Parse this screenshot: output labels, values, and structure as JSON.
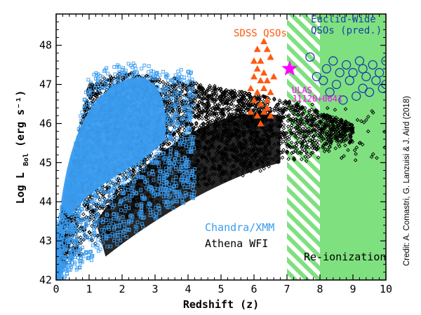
{
  "chart_data": {
    "type": "scatter",
    "xlabel": "Redshift (z)",
    "ylabel_main": "Log L",
    "ylabel_sub": "Bol",
    "ylabel_units": "(erg s⁻¹)",
    "xlim": [
      0,
      10
    ],
    "ylim": [
      42,
      48.8
    ],
    "xticks": [
      "0",
      "1",
      "2",
      "3",
      "4",
      "5",
      "6",
      "7",
      "8",
      "9",
      "10"
    ],
    "yticks": [
      "42",
      "43",
      "44",
      "45",
      "46",
      "47",
      "48"
    ],
    "regions": [
      {
        "label": "Re-ionization",
        "x": [
          7,
          10
        ],
        "style": "hatched 7–8, solid 8–10",
        "color": "#7fe07f"
      }
    ],
    "series": [
      {
        "name": "Athena WFI",
        "marker": "diamond",
        "color": "#000000",
        "description_region": "dense band from z≈0 to z≈9, rising upper envelope from 43 to ~47.4"
      },
      {
        "name": "Chandra/XMM",
        "marker": "square",
        "color": "#3a9cf0"
      },
      {
        "name": "SDSS QSOs",
        "marker": "triangle",
        "color": "#ff5a10",
        "points": [
          [
            6.1,
            47.9
          ],
          [
            6.3,
            48.1
          ],
          [
            6.4,
            47.9
          ],
          [
            6.0,
            47.6
          ],
          [
            6.2,
            47.6
          ],
          [
            6.5,
            47.7
          ],
          [
            6.1,
            47.4
          ],
          [
            6.3,
            47.3
          ],
          [
            6.0,
            47.2
          ],
          [
            6.2,
            47.1
          ],
          [
            6.4,
            47.1
          ],
          [
            6.6,
            47.2
          ],
          [
            5.9,
            46.9
          ],
          [
            6.1,
            46.8
          ],
          [
            6.3,
            46.9
          ],
          [
            6.5,
            46.8
          ],
          [
            6.0,
            46.6
          ],
          [
            6.2,
            46.5
          ],
          [
            6.4,
            46.6
          ],
          [
            5.9,
            46.3
          ],
          [
            6.1,
            46.2
          ],
          [
            6.3,
            46.3
          ],
          [
            6.5,
            46.2
          ],
          [
            6.2,
            46.0
          ],
          [
            6.4,
            46.4
          ]
        ]
      },
      {
        "name": "Euclid-Wide QSOs (pred.)",
        "marker": "circle-open",
        "color": "#1a3faa",
        "points": [
          [
            7.7,
            47.7
          ],
          [
            8.2,
            47.4
          ],
          [
            8.4,
            47.6
          ],
          [
            8.6,
            47.3
          ],
          [
            8.8,
            47.5
          ],
          [
            9.0,
            47.3
          ],
          [
            9.2,
            47.6
          ],
          [
            9.4,
            47.2
          ],
          [
            9.6,
            47.5
          ],
          [
            9.8,
            47.3
          ],
          [
            10.0,
            47.6
          ],
          [
            8.1,
            47.1
          ],
          [
            8.5,
            47.0
          ],
          [
            8.9,
            47.1
          ],
          [
            9.3,
            46.9
          ],
          [
            9.7,
            47.1
          ],
          [
            8.3,
            46.8
          ],
          [
            9.1,
            46.7
          ],
          [
            9.5,
            46.8
          ],
          [
            9.9,
            46.9
          ],
          [
            8.7,
            46.6
          ],
          [
            10.0,
            47.0
          ],
          [
            7.9,
            47.2
          ],
          [
            9.3,
            47.4
          ]
        ]
      },
      {
        "name": "ULAS J1120+0641",
        "marker": "star",
        "color": "#ff00ff",
        "points": [
          [
            7.08,
            47.4
          ]
        ]
      }
    ],
    "annotations": {
      "sdss": "SDSS QSOs",
      "euclid_line1": "Euclid-Wide",
      "euclid_line2": "QSOs (pred.)",
      "ulas_line1": "ULAS",
      "ulas_line2": "J1120+0641",
      "chandra": "Chandra/XMM",
      "athena": "Athena WFI",
      "reion": "Re-ionization"
    },
    "credit": "Credit: A. Comastri, G. Lanzuisi & J. Aird (2018)"
  }
}
